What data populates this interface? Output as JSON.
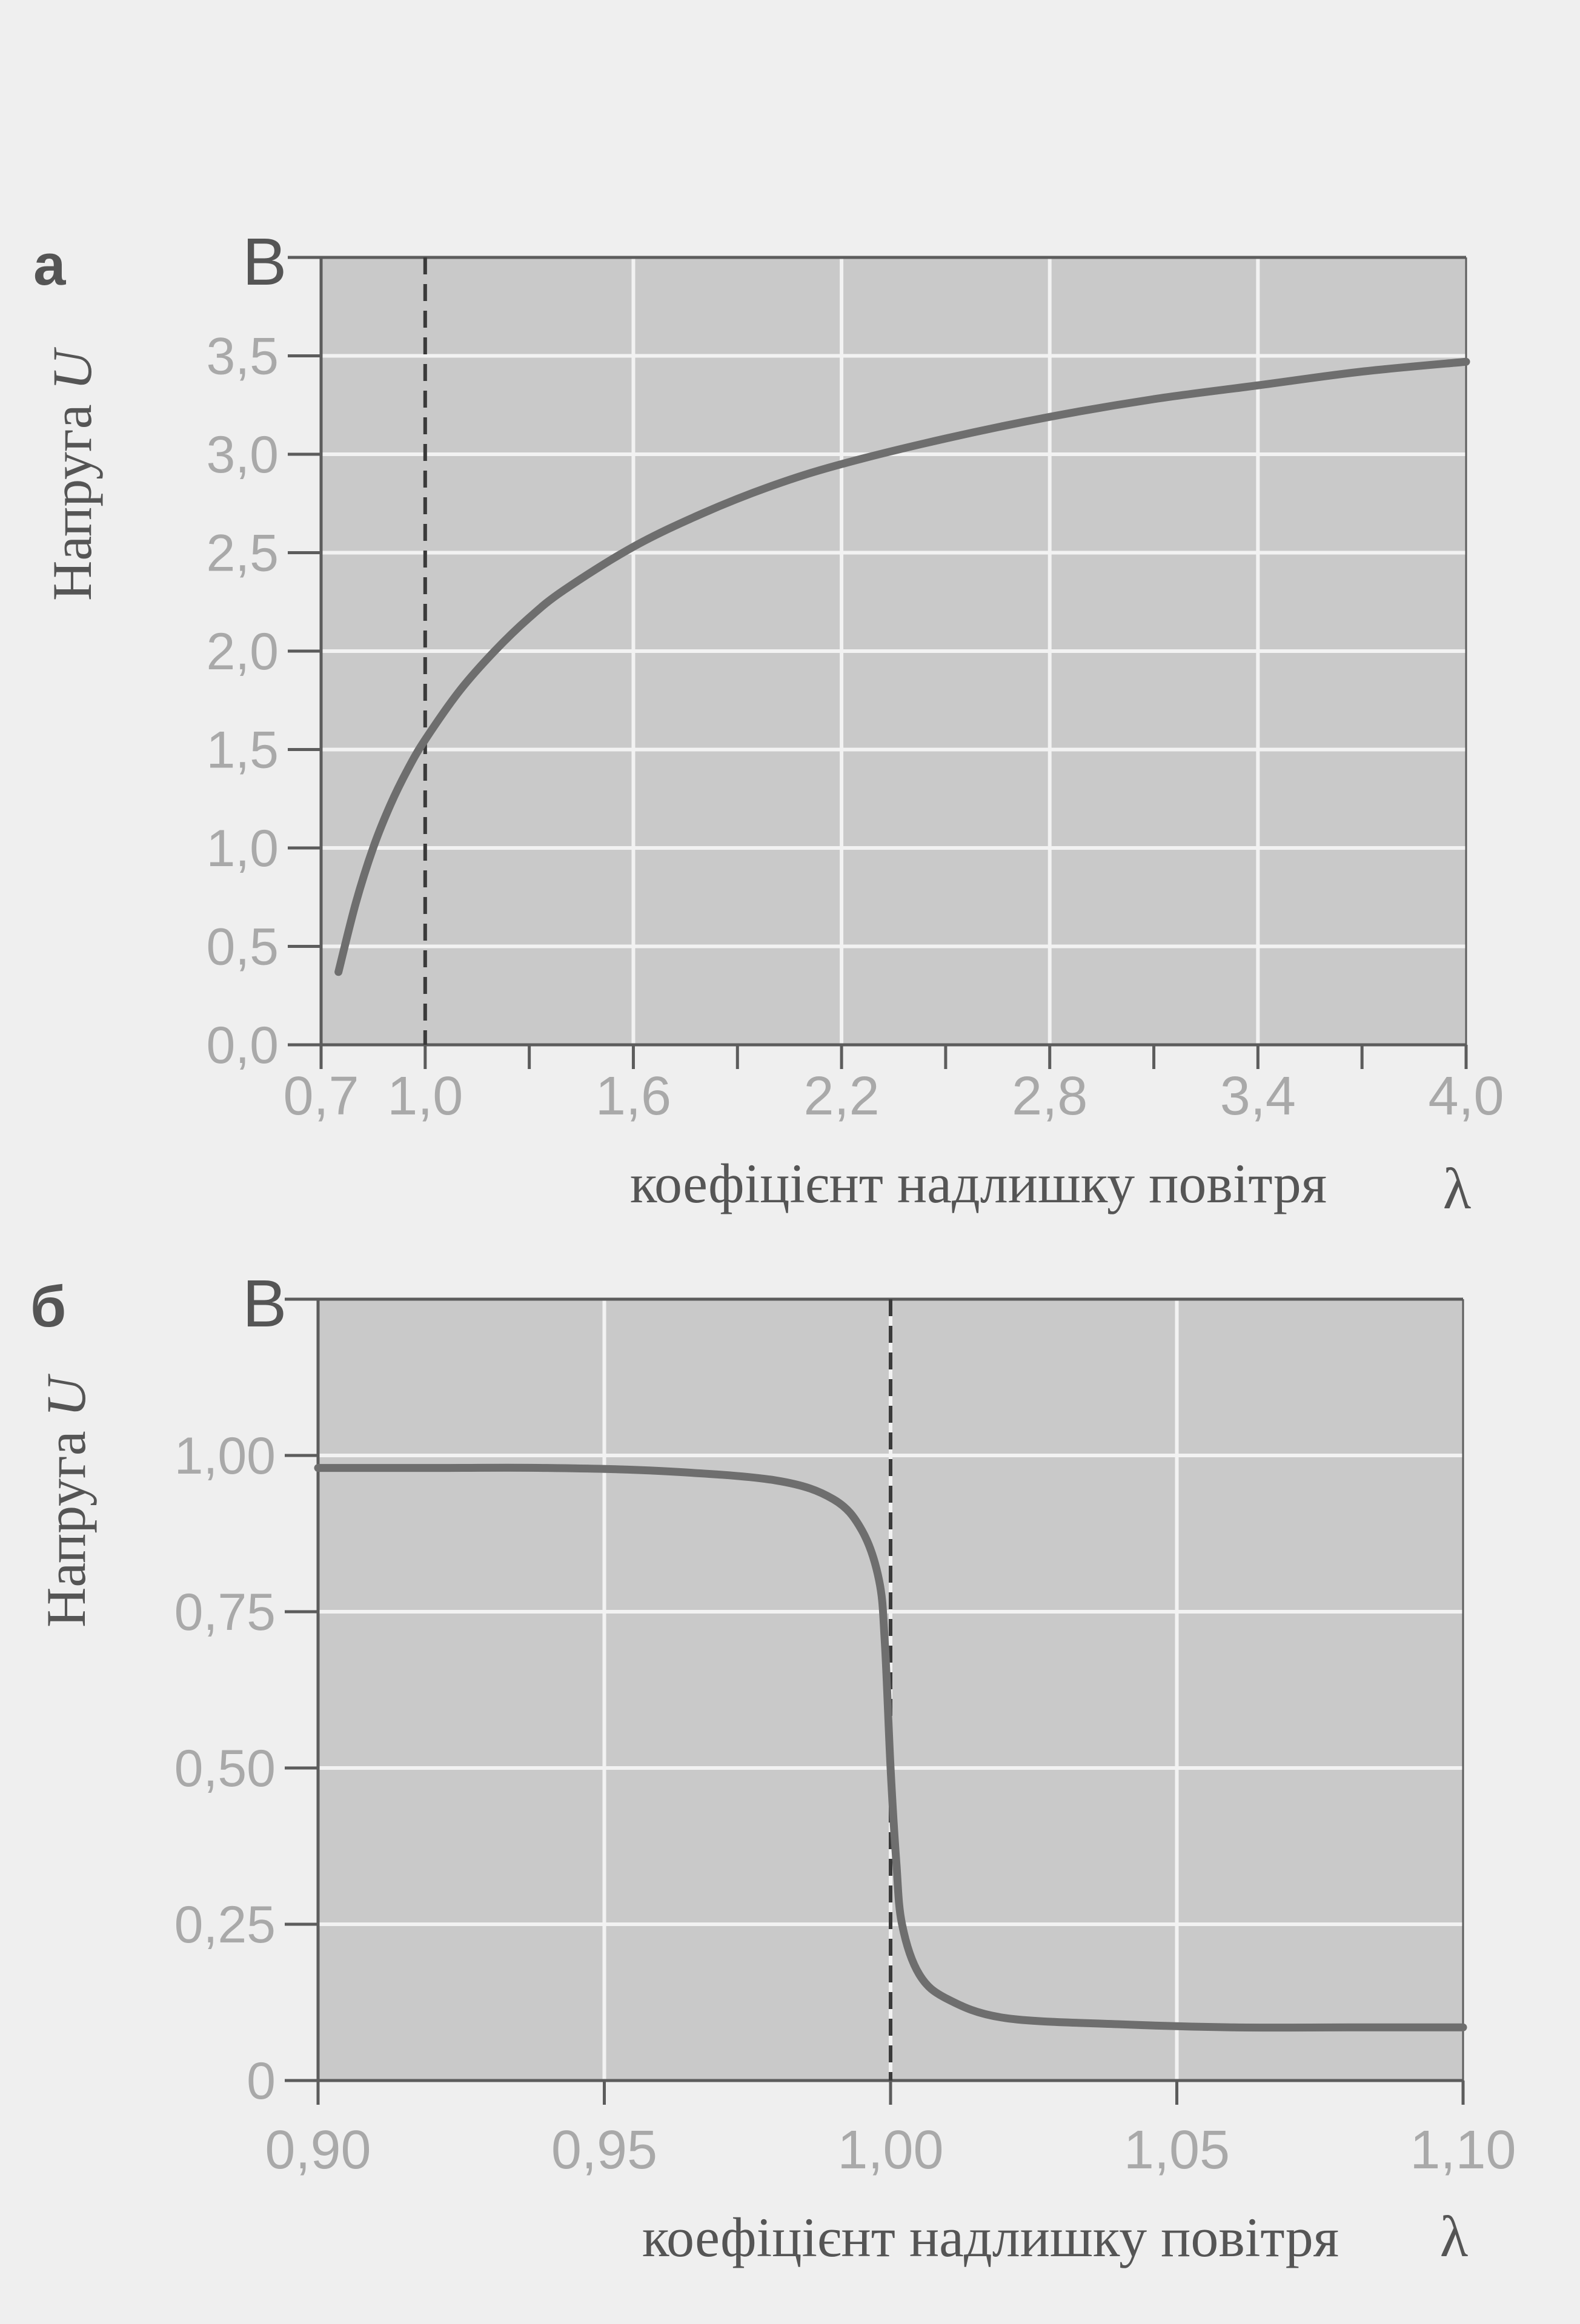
{
  "chart_data": [
    {
      "type": "line",
      "panel_label": "а",
      "y_unit": "В",
      "ylabel_prefix": "Напруга ",
      "ylabel_symbol": "U",
      "xlabel": "коефіцієнт надлишку повітря",
      "xlabel_symbol": "λ",
      "xlim": [
        0.7,
        4.0
      ],
      "ylim": [
        0.0,
        4.0
      ],
      "x_ticks": [
        0.7,
        1.0,
        1.6,
        2.2,
        2.8,
        3.4,
        4.0
      ],
      "x_tick_labels": [
        "0,7",
        "1,0",
        "1,6",
        "2,2",
        "2,8",
        "3,4",
        "4,0"
      ],
      "x_minor_ticks": [
        1.3,
        1.9,
        2.5,
        3.1,
        3.7
      ],
      "x_grid": [
        0.7,
        1.6,
        2.2,
        2.8,
        3.4
      ],
      "y_ticks": [
        0.0,
        0.5,
        1.0,
        1.5,
        2.0,
        2.5,
        3.0,
        3.5
      ],
      "y_tick_labels": [
        "0,0",
        "0,5",
        "1,0",
        "1,5",
        "2,0",
        "2,5",
        "3,0",
        "3,5"
      ],
      "grid": true,
      "reference_line_x": 1.0,
      "colors": {
        "plot_bg": "#c9c9c9",
        "curve": "#6e6e6e",
        "grid": "#f2f2f2",
        "axis": "#5c5c5c"
      },
      "series": [
        {
          "x": [
            0.75,
            0.8,
            0.85,
            0.9,
            0.95,
            1.0,
            1.1,
            1.2,
            1.3,
            1.4,
            1.6,
            1.8,
            2.0,
            2.2,
            2.5,
            2.8,
            3.1,
            3.4,
            3.7,
            4.0
          ],
          "y": [
            0.37,
            0.72,
            1.0,
            1.22,
            1.4,
            1.55,
            1.8,
            2.0,
            2.17,
            2.31,
            2.53,
            2.7,
            2.84,
            2.95,
            3.08,
            3.19,
            3.28,
            3.35,
            3.42,
            3.47
          ]
        }
      ]
    },
    {
      "type": "line",
      "panel_label": "б",
      "y_unit": "В",
      "ylabel_prefix": "Напруга ",
      "ylabel_symbol": "U",
      "xlabel": "коефіцієнт надлишку повітря",
      "xlabel_symbol": "λ",
      "xlim": [
        0.9,
        1.1
      ],
      "ylim": [
        0.0,
        1.25
      ],
      "x_ticks": [
        0.9,
        0.95,
        1.0,
        1.05,
        1.1
      ],
      "x_tick_labels": [
        "0,90",
        "0,95",
        "1,00",
        "1,05",
        "1,10"
      ],
      "x_minor_ticks": [],
      "x_grid": [
        0.9,
        0.95,
        1.0,
        1.05
      ],
      "y_ticks": [
        0.0,
        0.25,
        0.5,
        0.75,
        1.0
      ],
      "y_tick_labels": [
        "0",
        "0,25",
        "0,50",
        "0,75",
        "1,00"
      ],
      "grid": true,
      "reference_line_x": 1.0,
      "colors": {
        "plot_bg": "#c9c9c9",
        "curve": "#6e6e6e",
        "grid": "#f2f2f2",
        "axis": "#5c5c5c"
      },
      "series": [
        {
          "x": [
            0.9,
            0.92,
            0.94,
            0.96,
            0.98,
            0.99,
            0.995,
            0.998,
            0.999,
            1.0,
            1.001,
            1.002,
            1.005,
            1.01,
            1.02,
            1.04,
            1.06,
            1.08,
            1.1
          ],
          "y": [
            0.98,
            0.98,
            0.98,
            0.975,
            0.96,
            0.93,
            0.88,
            0.8,
            0.7,
            0.5,
            0.35,
            0.25,
            0.17,
            0.13,
            0.1,
            0.09,
            0.085,
            0.085,
            0.085
          ]
        }
      ]
    }
  ]
}
